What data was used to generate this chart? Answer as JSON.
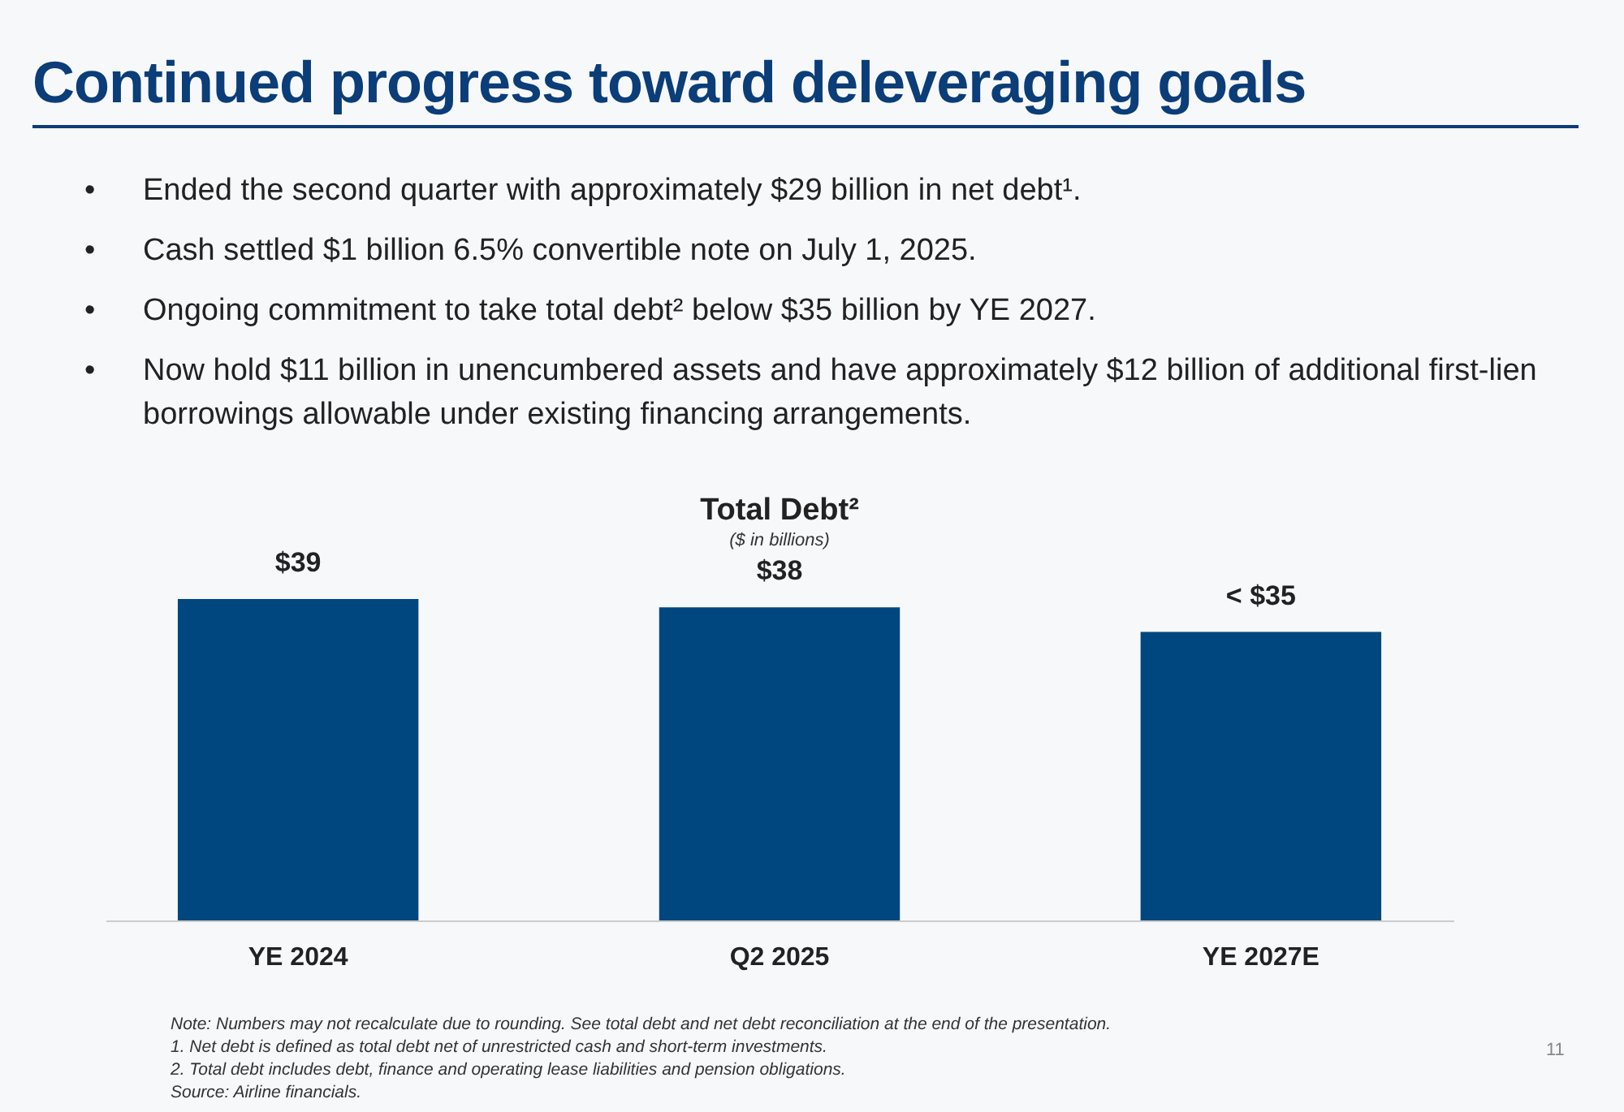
{
  "chart_data": {
    "type": "bar",
    "title": "Continued progress toward deleveraging goals",
    "subtitle": "Total Debt²",
    "ylabel": "($ in billions)",
    "categories": [
      "YE 2024",
      "Q2 2025",
      "YE 2027E"
    ],
    "values": [
      39,
      38,
      35
    ],
    "value_labels": [
      "$39",
      "$38",
      "< $35"
    ],
    "color": "#00467f",
    "tick_labels": "x",
    "grid": false,
    "annotations": [
      "• Ended the second quarter with approximately $29 billion in net debt¹.",
      "• Cash settled $1 billion 6.5% convertible note on July 1, 2025.",
      "• Ongoing commitment to take total debt² below $35 billion by YE 2027.",
      "• Now hold $11 billion in unencumbered assets and have approximately $12 billion of additional first-lien borrowings allowable under existing financing arrangements.",
      "Note: Numbers may not recalculate due to rounding. See total debt and net debt reconciliation at the end of the presentation.",
      "1. Net debt is defined as total debt net of unrestricted cash and short-term investments.",
      "2. Total debt includes debt, finance and operating lease liabilities and pension obligations.",
      "Source: Airline financials.",
      "11"
    ]
  }
}
